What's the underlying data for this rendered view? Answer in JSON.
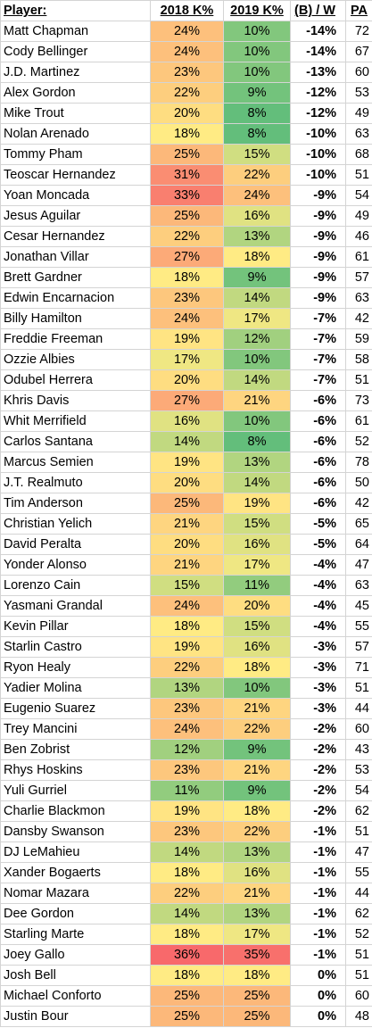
{
  "table": {
    "header": [
      "Player:",
      "2018 K%",
      "2019 K%",
      "(B) / W",
      "PA"
    ],
    "rows": [
      [
        "Matt Chapman",
        "24%",
        "10%",
        "-14%",
        "72"
      ],
      [
        "Cody Bellinger",
        "24%",
        "10%",
        "-14%",
        "67"
      ],
      [
        "J.D. Martinez",
        "23%",
        "10%",
        "-13%",
        "60"
      ],
      [
        "Alex Gordon",
        "22%",
        "9%",
        "-12%",
        "53"
      ],
      [
        "Mike Trout",
        "20%",
        "8%",
        "-12%",
        "49"
      ],
      [
        "Nolan Arenado",
        "18%",
        "8%",
        "-10%",
        "63"
      ],
      [
        "Tommy Pham",
        "25%",
        "15%",
        "-10%",
        "68"
      ],
      [
        "Teoscar Hernandez",
        "31%",
        "22%",
        "-10%",
        "51"
      ],
      [
        "Yoan Moncada",
        "33%",
        "24%",
        "-9%",
        "54"
      ],
      [
        "Jesus Aguilar",
        "25%",
        "16%",
        "-9%",
        "49"
      ],
      [
        "Cesar Hernandez",
        "22%",
        "13%",
        "-9%",
        "46"
      ],
      [
        "Jonathan Villar",
        "27%",
        "18%",
        "-9%",
        "61"
      ],
      [
        "Brett Gardner",
        "18%",
        "9%",
        "-9%",
        "57"
      ],
      [
        "Edwin Encarnacion",
        "23%",
        "14%",
        "-9%",
        "63"
      ],
      [
        "Billy Hamilton",
        "24%",
        "17%",
        "-7%",
        "42"
      ],
      [
        "Freddie Freeman",
        "19%",
        "12%",
        "-7%",
        "59"
      ],
      [
        "Ozzie Albies",
        "17%",
        "10%",
        "-7%",
        "58"
      ],
      [
        "Odubel Herrera",
        "20%",
        "14%",
        "-7%",
        "51"
      ],
      [
        "Khris Davis",
        "27%",
        "21%",
        "-6%",
        "73"
      ],
      [
        "Whit Merrifield",
        "16%",
        "10%",
        "-6%",
        "61"
      ],
      [
        "Carlos Santana",
        "14%",
        "8%",
        "-6%",
        "52"
      ],
      [
        "Marcus Semien",
        "19%",
        "13%",
        "-6%",
        "78"
      ],
      [
        "J.T. Realmuto",
        "20%",
        "14%",
        "-6%",
        "50"
      ],
      [
        "Tim Anderson",
        "25%",
        "19%",
        "-6%",
        "42"
      ],
      [
        "Christian Yelich",
        "21%",
        "15%",
        "-5%",
        "65"
      ],
      [
        "David Peralta",
        "20%",
        "16%",
        "-5%",
        "64"
      ],
      [
        "Yonder Alonso",
        "21%",
        "17%",
        "-4%",
        "47"
      ],
      [
        "Lorenzo Cain",
        "15%",
        "11%",
        "-4%",
        "63"
      ],
      [
        "Yasmani Grandal",
        "24%",
        "20%",
        "-4%",
        "45"
      ],
      [
        "Kevin Pillar",
        "18%",
        "15%",
        "-4%",
        "55"
      ],
      [
        "Starlin Castro",
        "19%",
        "16%",
        "-3%",
        "57"
      ],
      [
        "Ryon Healy",
        "22%",
        "18%",
        "-3%",
        "71"
      ],
      [
        "Yadier Molina",
        "13%",
        "10%",
        "-3%",
        "51"
      ],
      [
        "Eugenio Suarez",
        "23%",
        "21%",
        "-3%",
        "44"
      ],
      [
        "Trey Mancini",
        "24%",
        "22%",
        "-2%",
        "60"
      ],
      [
        "Ben Zobrist",
        "12%",
        "9%",
        "-2%",
        "43"
      ],
      [
        "Rhys Hoskins",
        "23%",
        "21%",
        "-2%",
        "53"
      ],
      [
        "Yuli Gurriel",
        "11%",
        "9%",
        "-2%",
        "54"
      ],
      [
        "Charlie Blackmon",
        "19%",
        "18%",
        "-2%",
        "62"
      ],
      [
        "Dansby Swanson",
        "23%",
        "22%",
        "-1%",
        "51"
      ],
      [
        "DJ LeMahieu",
        "14%",
        "13%",
        "-1%",
        "47"
      ],
      [
        "Xander Bogaerts",
        "18%",
        "16%",
        "-1%",
        "55"
      ],
      [
        "Nomar Mazara",
        "22%",
        "21%",
        "-1%",
        "44"
      ],
      [
        "Dee Gordon",
        "14%",
        "13%",
        "-1%",
        "62"
      ],
      [
        "Starling Marte",
        "18%",
        "17%",
        "-1%",
        "52"
      ],
      [
        "Joey Gallo",
        "36%",
        "35%",
        "-1%",
        "51"
      ],
      [
        "Josh Bell",
        "18%",
        "18%",
        "0%",
        "51"
      ],
      [
        "Michael Conforto",
        "25%",
        "25%",
        "0%",
        "60"
      ],
      [
        "Justin Bour",
        "25%",
        "25%",
        "0%",
        "48"
      ]
    ]
  }
}
